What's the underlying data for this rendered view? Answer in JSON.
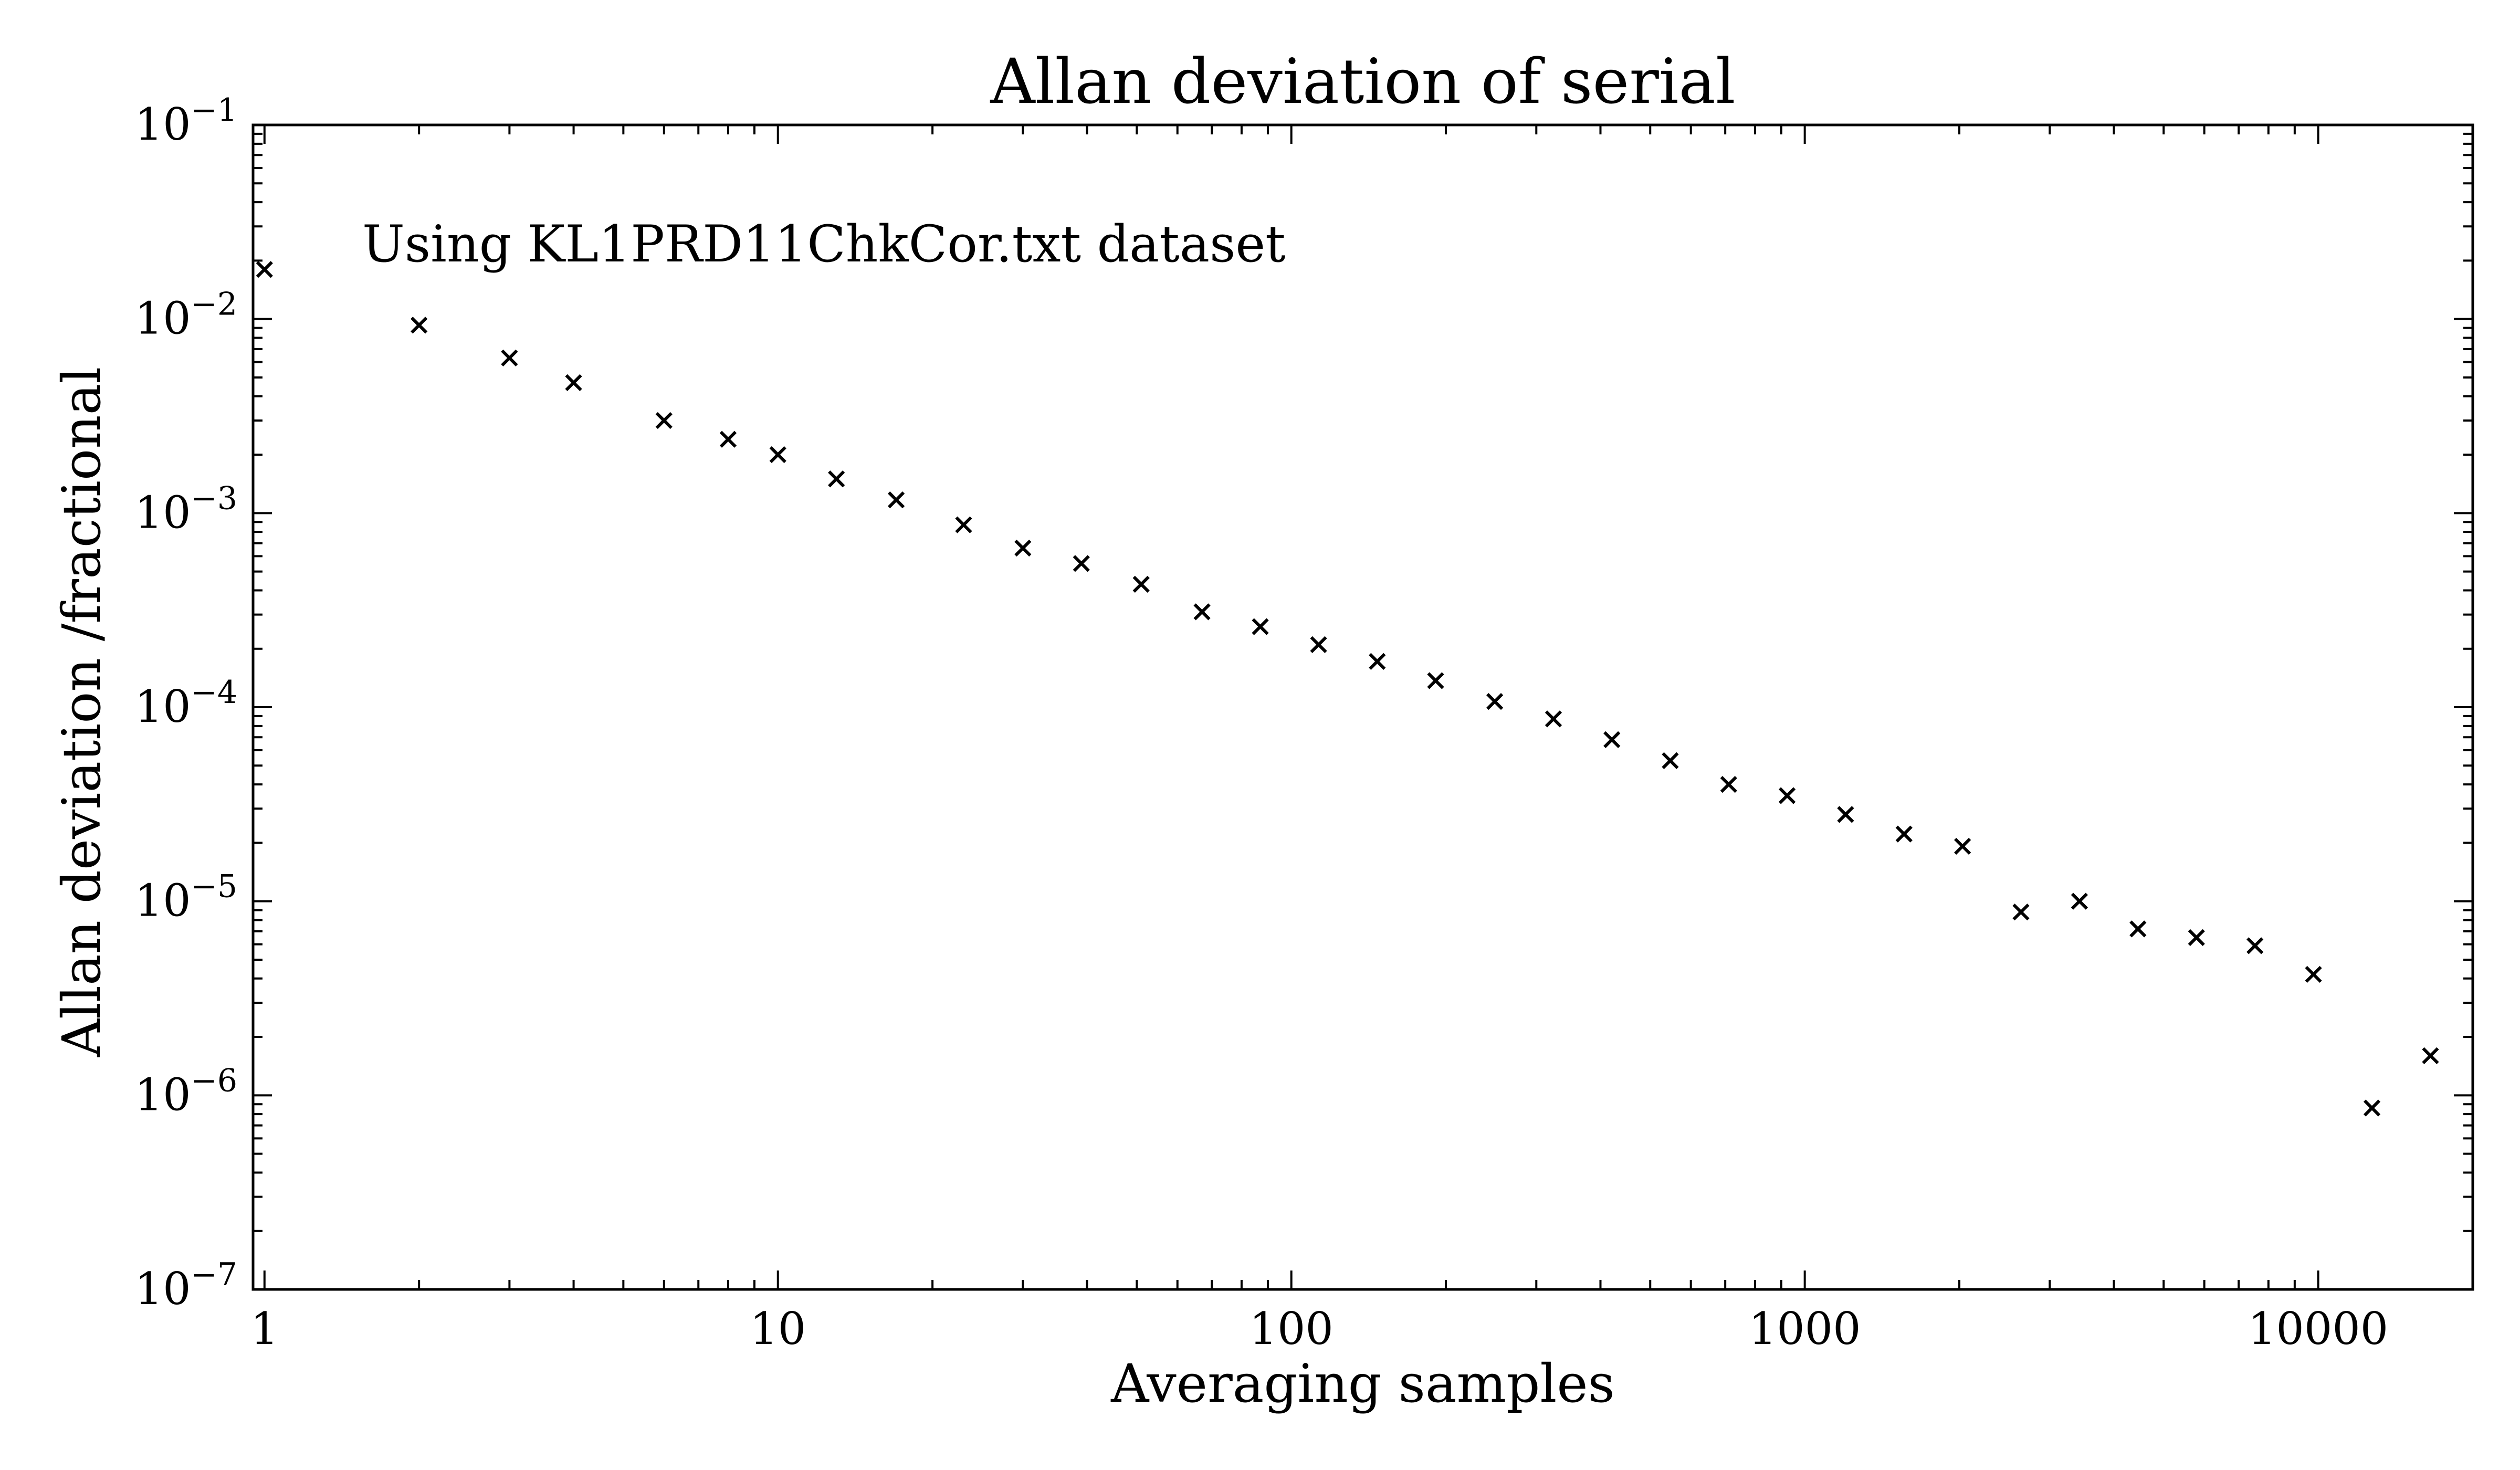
{
  "chart_data": {
    "type": "scatter",
    "title": "Allan deviation of serial",
    "xlabel": "Averaging samples",
    "ylabel": "Allan deviation /fractional",
    "annotation": "Using KL1PRD11ChkCor.txt dataset",
    "x_scale": "log",
    "y_scale": "log",
    "xlim": [
      0.95,
      20000
    ],
    "ylim": [
      1e-07,
      0.1
    ],
    "x_ticks": [
      {
        "value": 1,
        "label": "1"
      },
      {
        "value": 10,
        "label": "10"
      },
      {
        "value": 100,
        "label": "100"
      },
      {
        "value": 1000,
        "label": "1000"
      },
      {
        "value": 10000,
        "label": "10000"
      }
    ],
    "y_ticks": [
      {
        "value": 0.1,
        "base": "10",
        "exp": "−1"
      },
      {
        "value": 0.01,
        "base": "10",
        "exp": "−2"
      },
      {
        "value": 0.001,
        "base": "10",
        "exp": "−3"
      },
      {
        "value": 0.0001,
        "base": "10",
        "exp": "−4"
      },
      {
        "value": 1e-05,
        "base": "10",
        "exp": "−5"
      },
      {
        "value": 1e-06,
        "base": "10",
        "exp": "−6"
      },
      {
        "value": 1e-07,
        "base": "10",
        "exp": "−7"
      }
    ],
    "grid": false,
    "marker": "x",
    "marker_color": "#000000",
    "series": [
      {
        "x": [
          1,
          2,
          3,
          4,
          6,
          8,
          10,
          13,
          17,
          23,
          30,
          39,
          51,
          67,
          87,
          113,
          147,
          191,
          249,
          324,
          421,
          547,
          711,
          924,
          1201,
          1561,
          2029,
          2637,
          3428,
          4456,
          5793,
          7531,
          9790,
          12727,
          16545
        ],
        "y": [
          0.018,
          0.0093,
          0.0063,
          0.0047,
          0.003,
          0.0024,
          0.002,
          0.0015,
          0.00117,
          0.00087,
          0.00066,
          0.00055,
          0.00043,
          0.00031,
          0.00026,
          0.00021,
          0.000172,
          0.000137,
          0.000107,
          8.7e-05,
          6.8e-05,
          5.3e-05,
          4e-05,
          3.5e-05,
          2.8e-05,
          2.22e-05,
          1.92e-05,
          8.8e-06,
          1e-05,
          7.2e-06,
          6.5e-06,
          5.9e-06,
          4.2e-06,
          8.6e-07,
          1.6e-06
        ]
      }
    ]
  }
}
